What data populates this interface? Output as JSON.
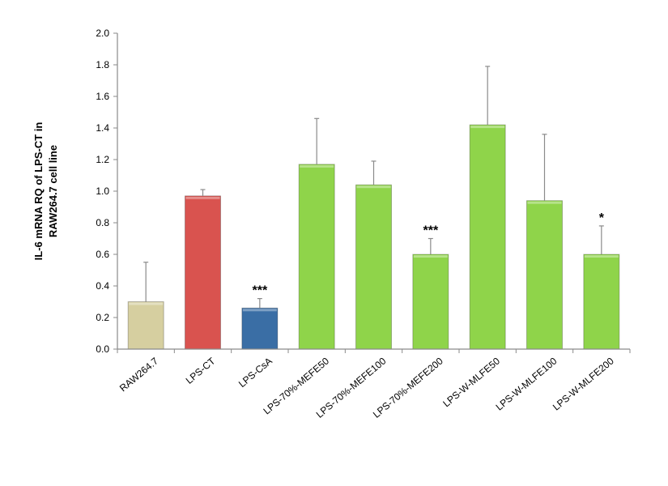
{
  "chart_data": {
    "type": "bar",
    "title": "",
    "xlabel": "",
    "ylabel_lines": [
      "IL-6  mRNA  RQ of  LPS-CT in",
      "RAW264.7 cell line"
    ],
    "ylim": [
      0.0,
      2.0
    ],
    "yticks": [
      "0.0",
      "0.2",
      "0.4",
      "0.6",
      "0.8",
      "1.0",
      "1.2",
      "1.4",
      "1.6",
      "1.8",
      "2.0"
    ],
    "grid": false,
    "categories": [
      "RAW264.7",
      "LPS-CT",
      "LPS-CsA",
      "LPS-70%-MEFE50",
      "LPS-70%-MEFE100",
      "LPS-70%-MEFE200",
      "LPS-W-MLFE50",
      "LPS-W-MLFE100",
      "LPS-W-MLFE200"
    ],
    "values": [
      0.3,
      0.97,
      0.26,
      1.17,
      1.04,
      0.6,
      1.42,
      0.94,
      0.6
    ],
    "errors": [
      0.25,
      0.04,
      0.06,
      0.29,
      0.15,
      0.1,
      0.37,
      0.42,
      0.18
    ],
    "significance": [
      "",
      "",
      "***",
      "",
      "",
      "***",
      "",
      "",
      "*"
    ],
    "colors": [
      "#d6cfa0",
      "#d9534f",
      "#3a6ea5",
      "#8fd44a",
      "#8fd44a",
      "#8fd44a",
      "#8fd44a",
      "#8fd44a",
      "#8fd44a"
    ]
  }
}
